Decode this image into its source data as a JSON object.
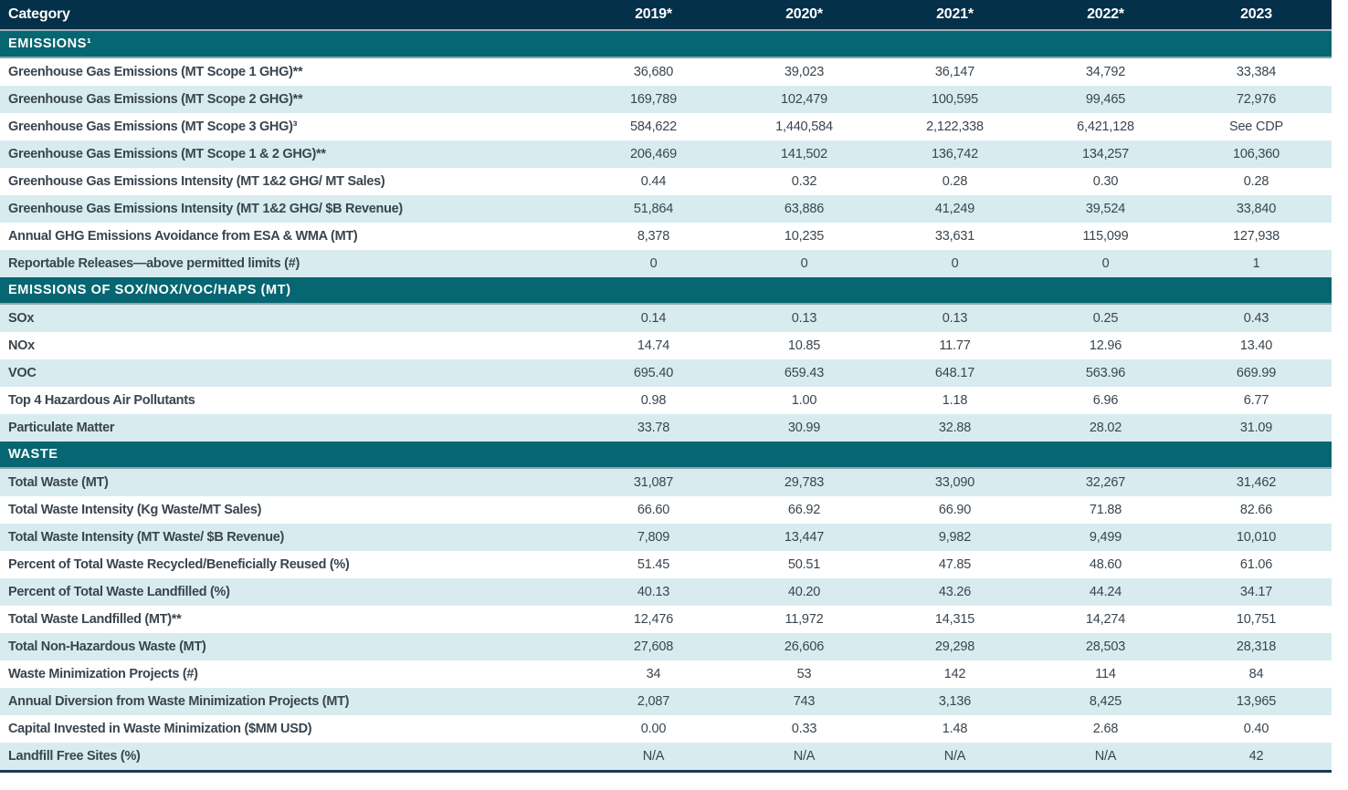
{
  "theme": {
    "header_navy": "#053049",
    "section_teal": "#066672",
    "light_row_blue": "#d8ecf0",
    "white_row": "#ffffff",
    "label_text": "#3a454e",
    "header_text": "#ffffff",
    "header_underline": "#a0afb8",
    "section_underline": "#8ca6ad",
    "table_bottom_border": "#1d3a55"
  },
  "chart_data": {
    "type": "table",
    "columns": [
      "Category",
      "2019*",
      "2020*",
      "2021*",
      "2022*",
      "2023"
    ],
    "sections": [
      {
        "title": "EMISSIONS¹",
        "rows": [
          {
            "label": "Greenhouse Gas Emissions (MT Scope 1 GHG)**",
            "values": [
              "36,680",
              "39,023",
              "36,147",
              "34,792",
              "33,384"
            ]
          },
          {
            "label": "Greenhouse Gas Emissions (MT Scope 2 GHG)**",
            "values": [
              "169,789",
              "102,479",
              "100,595",
              "99,465",
              "72,976"
            ]
          },
          {
            "label": "Greenhouse Gas Emissions (MT Scope 3 GHG)³",
            "values": [
              "584,622",
              "1,440,584",
              "2,122,338",
              "6,421,128",
              "See CDP"
            ]
          },
          {
            "label": "Greenhouse Gas Emissions (MT Scope 1 & 2 GHG)**",
            "values": [
              "206,469",
              "141,502",
              "136,742",
              "134,257",
              "106,360"
            ]
          },
          {
            "label": "Greenhouse Gas Emissions Intensity (MT 1&2 GHG/ MT Sales)",
            "values": [
              "0.44",
              "0.32",
              "0.28",
              "0.30",
              "0.28"
            ]
          },
          {
            "label": "Greenhouse Gas Emissions Intensity (MT 1&2 GHG/ $B Revenue)",
            "values": [
              "51,864",
              "63,886",
              "41,249",
              "39,524",
              "33,840"
            ]
          },
          {
            "label": "Annual GHG Emissions Avoidance from ESA & WMA (MT)",
            "values": [
              "8,378",
              "10,235",
              "33,631",
              "115,099",
              "127,938"
            ]
          },
          {
            "label": "Reportable Releases—above permitted limits (#)",
            "values": [
              "0",
              "0",
              "0",
              "0",
              "1"
            ]
          }
        ]
      },
      {
        "title": "EMISSIONS OF SOX/NOX/VOC/HAPS (MT)",
        "rows": [
          {
            "label": "SOx",
            "values": [
              "0.14",
              "0.13",
              "0.13",
              "0.25",
              "0.43"
            ]
          },
          {
            "label": "NOx",
            "values": [
              "14.74",
              "10.85",
              "11.77",
              "12.96",
              "13.40"
            ]
          },
          {
            "label": "VOC",
            "values": [
              "695.40",
              "659.43",
              "648.17",
              "563.96",
              "669.99"
            ]
          },
          {
            "label": "Top 4 Hazardous Air Pollutants",
            "values": [
              "0.98",
              "1.00",
              "1.18",
              "6.96",
              "6.77"
            ]
          },
          {
            "label": "Particulate Matter",
            "values": [
              "33.78",
              "30.99",
              "32.88",
              "28.02",
              "31.09"
            ]
          }
        ]
      },
      {
        "title": "WASTE",
        "rows": [
          {
            "label": "Total Waste (MT)",
            "values": [
              "31,087",
              "29,783",
              "33,090",
              "32,267",
              "31,462"
            ]
          },
          {
            "label": "Total Waste Intensity (Kg Waste/MT Sales)",
            "values": [
              "66.60",
              "66.92",
              "66.90",
              "71.88",
              "82.66"
            ]
          },
          {
            "label": "Total Waste Intensity (MT Waste/ $B Revenue)",
            "values": [
              "7,809",
              "13,447",
              "9,982",
              "9,499",
              "10,010"
            ]
          },
          {
            "label": "Percent of Total Waste Recycled/Beneficially Reused (%)",
            "values": [
              "51.45",
              "50.51",
              "47.85",
              "48.60",
              "61.06"
            ]
          },
          {
            "label": "Percent of Total Waste Landfilled (%)",
            "values": [
              "40.13",
              "40.20",
              "43.26",
              "44.24",
              "34.17"
            ]
          },
          {
            "label": "Total Waste Landfilled (MT)**",
            "values": [
              "12,476",
              "11,972",
              "14,315",
              "14,274",
              "10,751"
            ]
          },
          {
            "label": "Total Non-Hazardous Waste (MT)",
            "values": [
              "27,608",
              "26,606",
              "29,298",
              "28,503",
              "28,318"
            ]
          },
          {
            "label": "Waste Minimization Projects (#)",
            "values": [
              "34",
              "53",
              "142",
              "114",
              "84"
            ]
          },
          {
            "label": "Annual Diversion from Waste Minimization Projects (MT)",
            "values": [
              "2,087",
              "743",
              "3,136",
              "8,425",
              "13,965"
            ]
          },
          {
            "label": "Capital Invested in Waste Minimization ($MM USD)",
            "values": [
              "0.00",
              "0.33",
              "1.48",
              "2.68",
              "0.40"
            ]
          },
          {
            "label": "Landfill Free Sites (%)",
            "values": [
              "N/A",
              "N/A",
              "N/A",
              "N/A",
              "42"
            ]
          }
        ]
      }
    ]
  }
}
